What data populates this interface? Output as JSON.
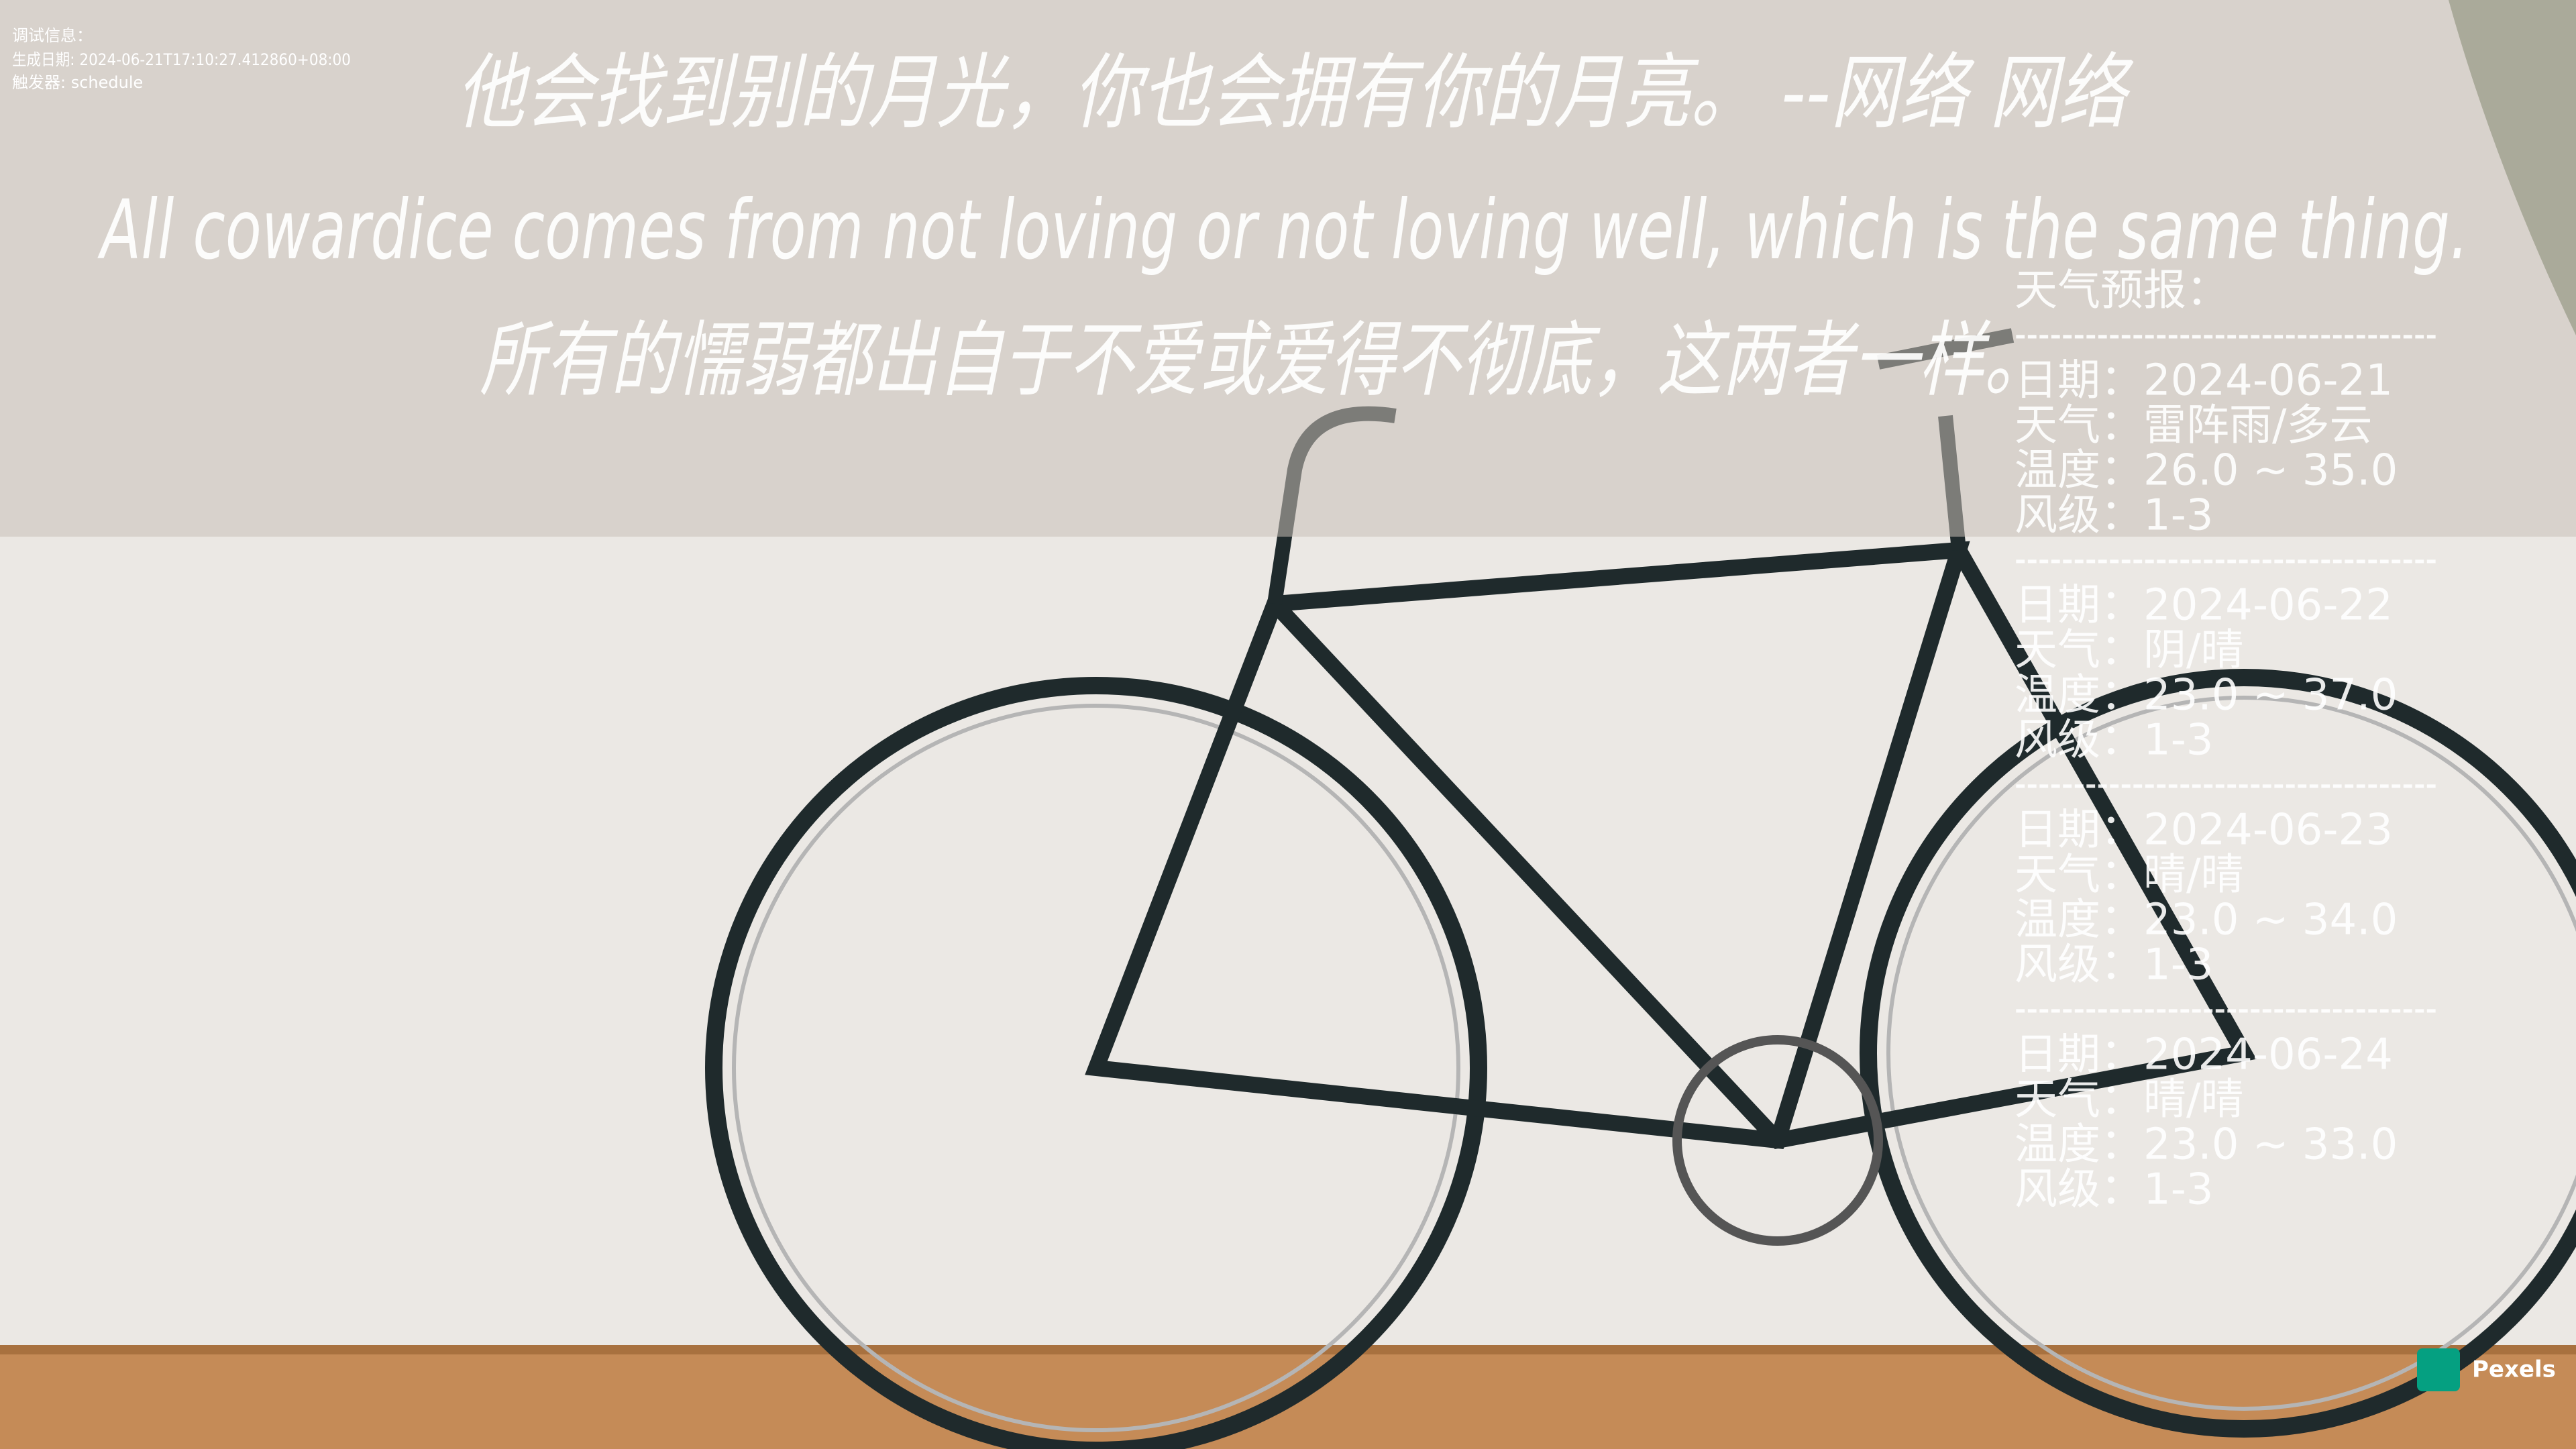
{
  "debug": {
    "label": "调试信息：",
    "generated": "生成日期: 2024-06-21T17:10:27.412860+08:00",
    "trigger": "触发器: schedule"
  },
  "quote": {
    "zh": "他会找到别的月光，你也会拥有你的月亮。   --网络 网络",
    "en": "All cowardice comes from not loving or not loving well, which is the same thing.",
    "zh_translation": "所有的懦弱都出自于不爱或爱得不彻底，这两者一样。"
  },
  "weather": {
    "title": "天气预报：",
    "separator": "------------------------------------",
    "days": [
      {
        "date": "日期：2024-06-21",
        "weather": "天气：雷阵雨/多云",
        "temperature": "温度：26.0 ~ 35.0",
        "wind": "风级：1-3"
      },
      {
        "date": "日期：2024-06-22",
        "weather": "天气：阴/晴",
        "temperature": "温度：23.0 ~ 37.0",
        "wind": "风级：1-3"
      },
      {
        "date": "日期：2024-06-23",
        "weather": "天气：晴/晴",
        "temperature": "温度：23.0 ~ 34.0",
        "wind": "风级：1-3"
      },
      {
        "date": "日期：2024-06-24",
        "weather": "天气：晴/晴",
        "temperature": "温度：23.0 ~ 33.0",
        "wind": "风级：1-3"
      }
    ]
  },
  "watermark": "Pexels"
}
